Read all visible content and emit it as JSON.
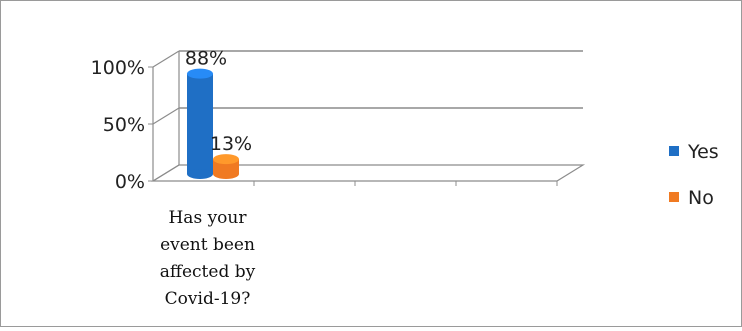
{
  "chart_data": {
    "type": "bar",
    "style": "3d-cylinder",
    "categories": [
      "Has your event been affected by Covid-19?"
    ],
    "category_label_lines": [
      "Has your",
      "event been",
      "affected by",
      "Covid-19?"
    ],
    "series": [
      {
        "name": "Yes",
        "values": [
          88
        ],
        "data_label": "88%",
        "color": "#1f6fc5"
      },
      {
        "name": "No",
        "values": [
          13
        ],
        "data_label": "13%",
        "color": "#f07a22"
      }
    ],
    "y_axis": {
      "ylim": [
        0,
        100
      ],
      "ticks": [
        0,
        50,
        100
      ],
      "tick_labels": [
        "0%",
        "50%",
        "100%"
      ]
    },
    "grid": true,
    "legend": {
      "position": "right",
      "entries": [
        "Yes",
        "No"
      ]
    },
    "title": "",
    "xlabel": "",
    "ylabel": ""
  }
}
